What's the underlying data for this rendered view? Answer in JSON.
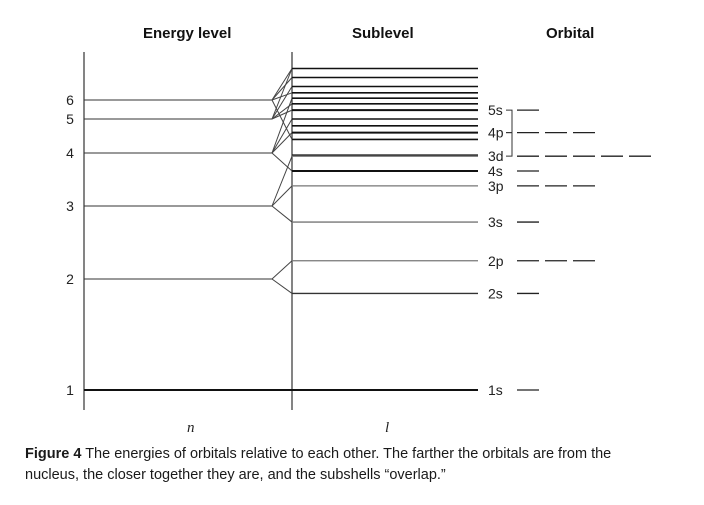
{
  "headers": {
    "energy_level": "Energy level",
    "sublevel": "Sublevel",
    "orbital": "Orbital"
  },
  "energy_levels": [
    {
      "label": "1",
      "value": 1.0
    },
    {
      "label": "2",
      "value": 2.0
    },
    {
      "label": "3",
      "value": 3.0
    },
    {
      "label": "4",
      "value": 3.5
    },
    {
      "label": "5",
      "value": 3.75
    },
    {
      "label": "6",
      "value": 3.9
    }
  ],
  "sublevels": [
    {
      "label": "1s",
      "value": 1.0,
      "orbitals": 1,
      "style": "thick"
    },
    {
      "label": "2s",
      "value": 1.87,
      "orbitals": 1,
      "style": "dark"
    },
    {
      "label": "2p",
      "value": 2.25,
      "orbitals": 3,
      "style": "light"
    },
    {
      "label": "3s",
      "value": 2.78,
      "orbitals": 1,
      "style": "light"
    },
    {
      "label": "3p",
      "value": 3.19,
      "orbitals": 3,
      "style": "light"
    },
    {
      "label": "4s",
      "value": 3.33,
      "orbitals": 1,
      "style": "thick"
    },
    {
      "label": "3d",
      "value": 3.47,
      "orbitals": 5,
      "style": "light"
    },
    {
      "label": "4p",
      "value": 3.65,
      "orbitals": 3,
      "style": "thick"
    },
    {
      "label": "5s",
      "value": 3.82,
      "orbitals": 1,
      "style": "thick"
    }
  ],
  "upper_unlabeled_lines": [
    3.48,
    3.6,
    3.7,
    3.75,
    3.87,
    3.92,
    3.98,
    4.05,
    4.15,
    4.25
  ],
  "axis_labels": {
    "x_left": "n",
    "x_right": "l"
  },
  "caption": {
    "figure_label": "Figure 4",
    "text": "The energies of orbitals relative to each other. The farther the orbitals are from the nucleus, the closer together they are, and the subshells “overlap.”"
  }
}
